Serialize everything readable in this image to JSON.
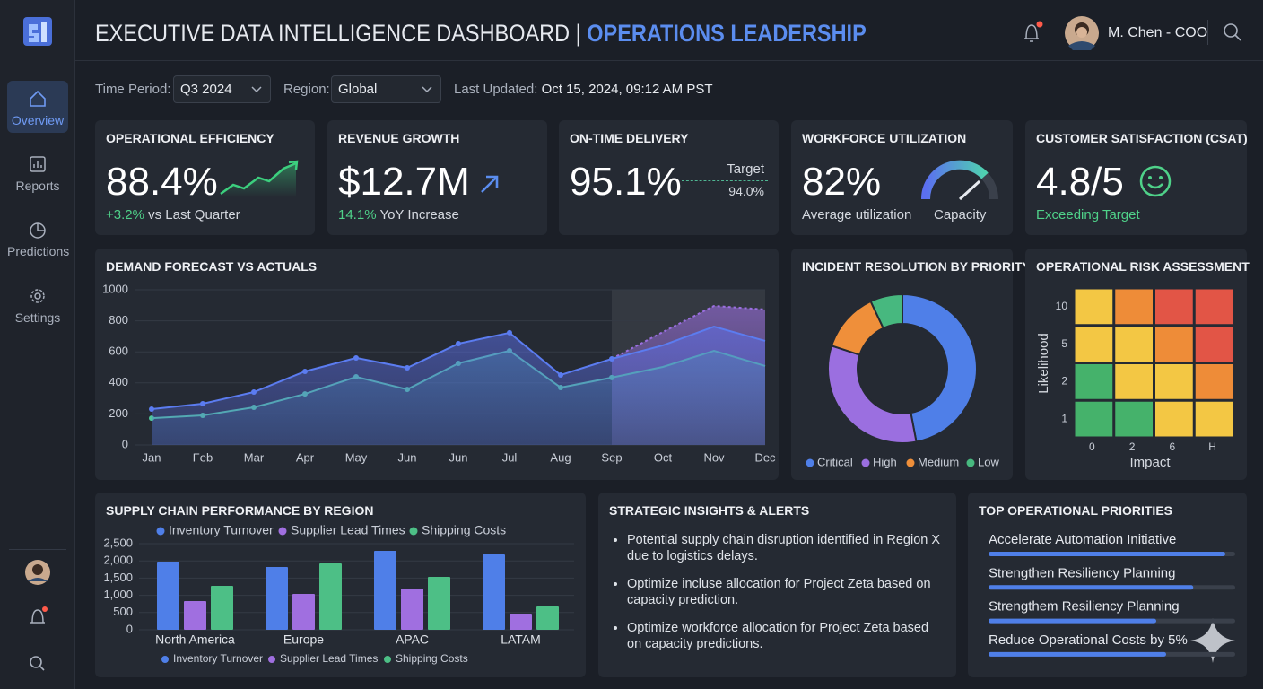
{
  "header": {
    "title": "EXECUTIVE DATA INTELLIGENCE DASHBOARD |",
    "title_highlight": "OPERATIONS LEADERSHIP",
    "user": "M. Chen - COO"
  },
  "sidebar": {
    "items": [
      "Overview",
      "Reports",
      "Predictions",
      "Settings"
    ]
  },
  "filters": {
    "time_label": "Time Period:",
    "time_value": "Q3 2024",
    "region_label": "Region:",
    "region_value": "Global",
    "updated_label": "Last Updated:",
    "updated_value": "Oct 15, 2024, 09:12 AM PST"
  },
  "kpis": [
    {
      "title": "OPERATIONAL EFFICIENCY",
      "value": "88.4%",
      "change": "+3.2%",
      "change_text": "vs Last Quarter"
    },
    {
      "title": "REVENUE GROWTH",
      "value": "$12.7M",
      "change": "14.1%",
      "change_text": "YoY Increase"
    },
    {
      "title": "ON-TIME DELIVERY",
      "value": "95.1%",
      "target_label": "Target",
      "target_value": "94.0%"
    },
    {
      "title": "WORKFORCE UTILIZATION",
      "value": "82%",
      "caption": "Average utilization",
      "gauge_label": "Capacity"
    },
    {
      "title": "CUSTOMER SATISFACTION (CSAT)",
      "value": "4.8/5",
      "status": "Exceeding Target"
    }
  ],
  "chart_data": [
    {
      "type": "line",
      "title": "DEMAND FORECAST VS ACTUALS",
      "categories": [
        "Jan",
        "Feb",
        "Mar",
        "Apr",
        "May",
        "Jun",
        "Jun",
        "Jul",
        "Aug",
        "Sep",
        "Oct",
        "Nov",
        "Dec"
      ],
      "series": [
        {
          "color": "#5b7cf0",
          "values": [
            231,
            266,
            341,
            474,
            561,
            497,
            653,
            723,
            451,
            555,
            642,
            763,
            671
          ]
        },
        {
          "color": "#4fc59a",
          "values": [
            173,
            191,
            243,
            329,
            439,
            358,
            526,
            607,
            370,
            434,
            503,
            607,
            509
          ]
        },
        {
          "color": "#9b6fe0",
          "values": [
            null,
            null,
            null,
            null,
            null,
            null,
            null,
            null,
            null,
            555,
            728,
            896,
            873
          ]
        }
      ],
      "ylim": [
        0,
        1000
      ],
      "yticks": [
        0,
        200,
        400,
        600,
        800,
        1000
      ],
      "grid": true
    },
    {
      "type": "pie",
      "title": "INCIDENT RESOLUTION BY PRIORITY",
      "categories": [
        "Critical",
        "High",
        "Medium",
        "Low"
      ],
      "values": [
        47,
        33,
        13,
        7
      ],
      "colors": [
        "#4f7fe8",
        "#9b6fe0",
        "#ef8f3a",
        "#47b87f"
      ]
    },
    {
      "type": "heatmap",
      "title": "OPERATIONAL RISK ASSESSMENT",
      "ylabel": "Likelihood",
      "xlabel": "Impact",
      "y_categories": [
        "10",
        "5",
        "2",
        "1"
      ],
      "x_categories": [
        "0",
        "2",
        "6",
        "H"
      ],
      "colors": [
        [
          "#f3c744",
          "#ee8c38",
          "#e25546",
          "#e25546"
        ],
        [
          "#f3c744",
          "#f3c744",
          "#ee8c38",
          "#e25546"
        ],
        [
          "#45b26b",
          "#f3c744",
          "#f3c744",
          "#ee8c38"
        ],
        [
          "#45b26b",
          "#45b26b",
          "#f3c744",
          "#f3c744"
        ]
      ]
    },
    {
      "type": "bar",
      "title": "SUPPLY CHAIN PERFORMANCE BY REGION",
      "categories": [
        "North America",
        "Europe",
        "APAC",
        "LATAM"
      ],
      "series": [
        {
          "name": "Inventory Turnover",
          "color": "#4f7fe8",
          "values": [
            1979,
            1823,
            2292,
            2188
          ]
        },
        {
          "name": "Supplier Lead Times",
          "color": "#a06fe0",
          "values": [
            833,
            1042,
            1198,
            469
          ]
        },
        {
          "name": "Shipping Costs",
          "color": "#4dbf86",
          "values": [
            1276,
            1927,
            1536,
            677
          ]
        }
      ],
      "ylim": [
        0,
        2500
      ],
      "yticks": [
        0,
        500,
        {
          "value": 1000,
          "label": "1,000"
        },
        {
          "value": 1500,
          "label": "1,500"
        },
        {
          "value": 2000,
          "label": "2,000"
        },
        {
          "value": 2500,
          "label": "2,500"
        }
      ],
      "grid": true
    }
  ],
  "insights": {
    "title": "STRATEGIC INSIGHTS & ALERTS",
    "items": [
      "Potential supply chain disruption identified in Region X due to logistics delays.",
      "Optimize incluse allocation for Project Zeta based on capacity prediction.",
      "Optimize workforce allocation for Project Zeta based on capacity predictions."
    ]
  },
  "priorities": {
    "title": "TOP OPERATIONAL PRIORITIES",
    "items": [
      {
        "label": "Accelerate Automation Initiative",
        "progress": 96
      },
      {
        "label": "Strengthen Resiliency Planning",
        "progress": 83
      },
      {
        "label": "Strengthem Resiliency Planning",
        "progress": 68
      },
      {
        "label": "Reduce Operational Costs by 5%",
        "progress": 72
      }
    ]
  }
}
